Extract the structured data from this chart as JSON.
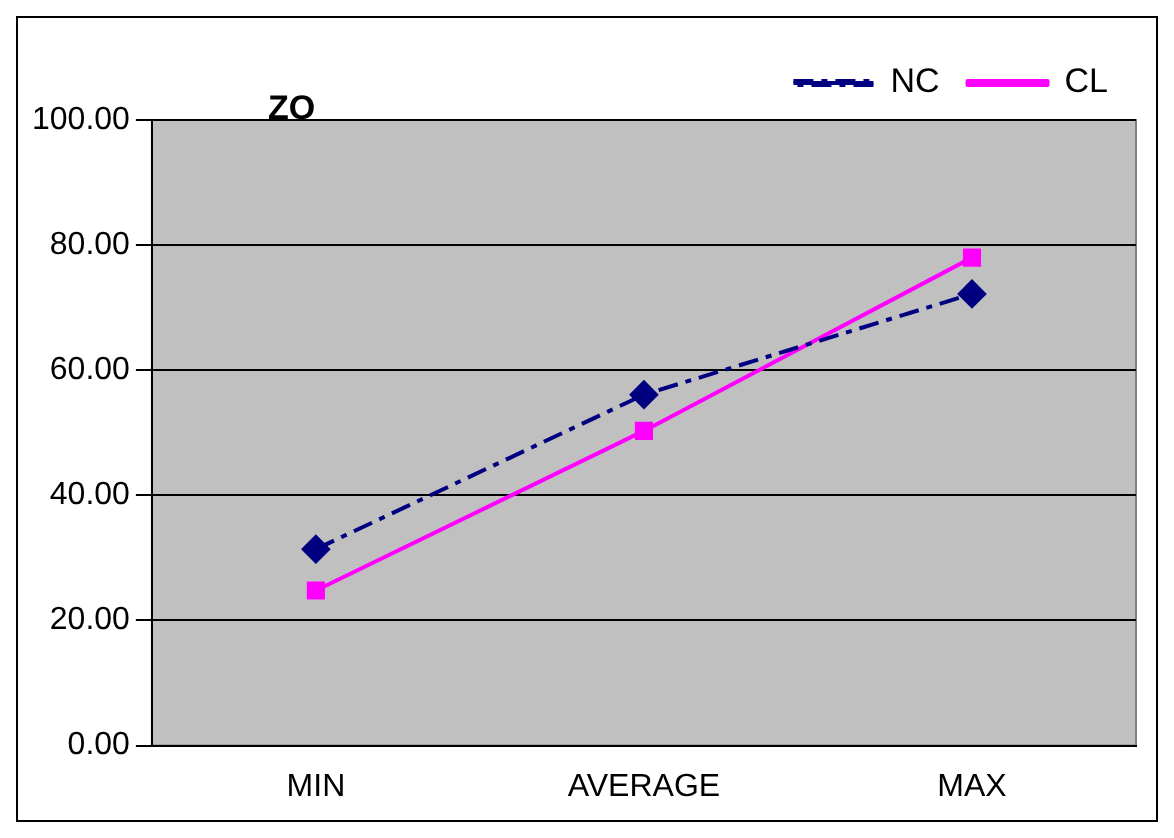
{
  "chart_data": {
    "type": "line",
    "title": "ZO",
    "categories": [
      "MIN",
      "AVERAGE",
      "MAX"
    ],
    "series": [
      {
        "name": "NC",
        "color": "#000080",
        "values": [
          31.4,
          56.1,
          72.2
        ],
        "marker": "diamond",
        "line_style": "dashed"
      },
      {
        "name": "CL",
        "color": "#ff00ff",
        "values": [
          24.8,
          50.3,
          78.0
        ],
        "marker": "square",
        "line_style": "solid"
      }
    ],
    "ylim": [
      0,
      100
    ],
    "yticks": [
      {
        "value": 0,
        "label": "0.00"
      },
      {
        "value": 20,
        "label": "20.00"
      },
      {
        "value": 40,
        "label": "40.00"
      },
      {
        "value": 60,
        "label": "60.00"
      },
      {
        "value": 80,
        "label": "80.00"
      },
      {
        "value": 100,
        "label": "100.00"
      }
    ],
    "grid": "y",
    "legend": "top right"
  }
}
